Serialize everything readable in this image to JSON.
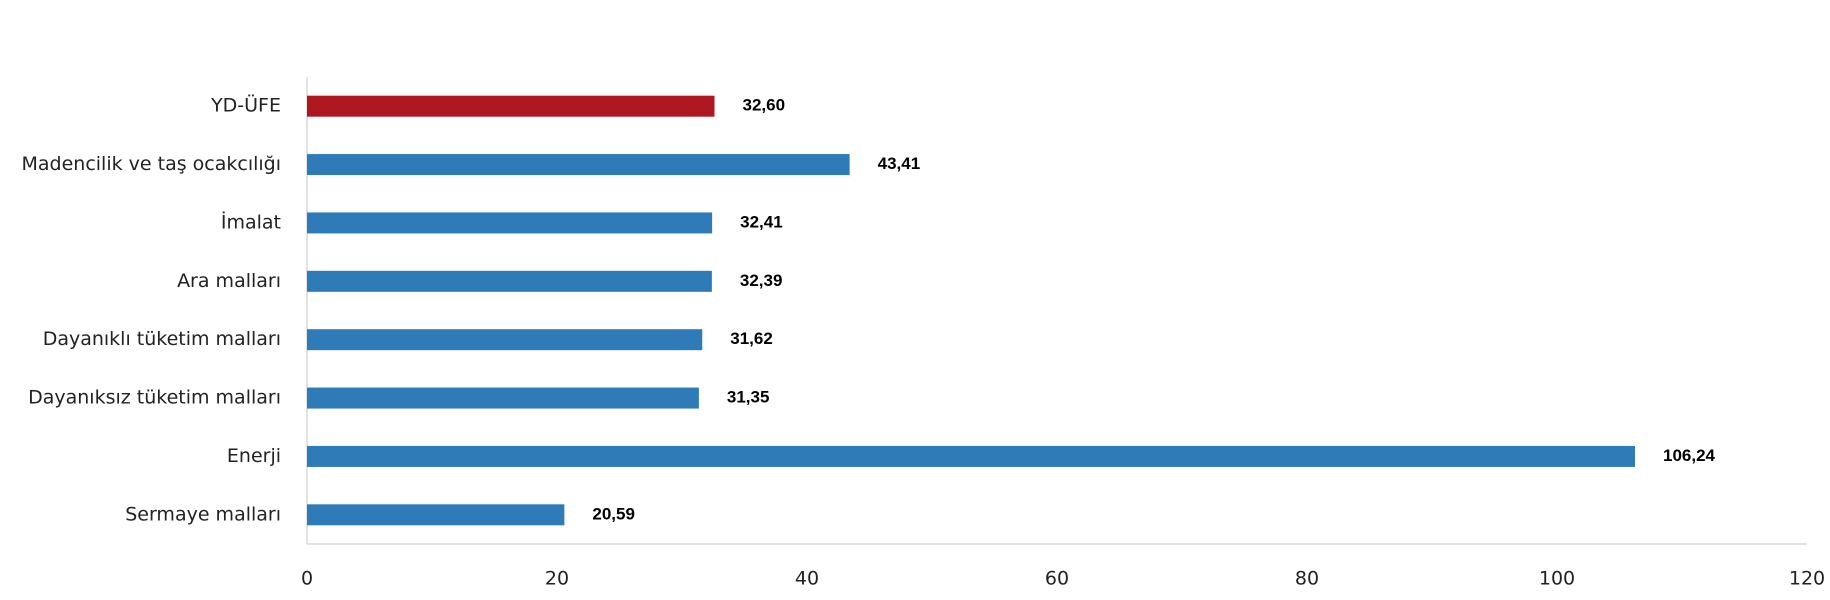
{
  "chart_data": {
    "type": "hbar",
    "categories": [
      "YD-ÜFE",
      "Madencilik ve taş ocakcılığı",
      "İmalat",
      "Ara malları",
      "Dayanıklı tüketim malları",
      "Dayanıksız tüketim malları",
      "Enerji",
      "Sermaye malları"
    ],
    "values": [
      32.6,
      43.41,
      32.41,
      32.39,
      31.62,
      31.35,
      106.24,
      20.59
    ],
    "value_labels": [
      "32,60",
      "43,41",
      "32,41",
      "32,39",
      "31,62",
      "31,35",
      "106,24",
      "20,59"
    ],
    "colors": [
      "#ad1720",
      "#2e7bb8",
      "#2e7bb8",
      "#2e7bb8",
      "#2e7bb8",
      "#2e7bb8",
      "#2e7bb8",
      "#2e7bb8"
    ],
    "xlim": [
      0,
      120
    ],
    "xticks": [
      0,
      20,
      40,
      60,
      80,
      100,
      120
    ],
    "grid": false
  }
}
